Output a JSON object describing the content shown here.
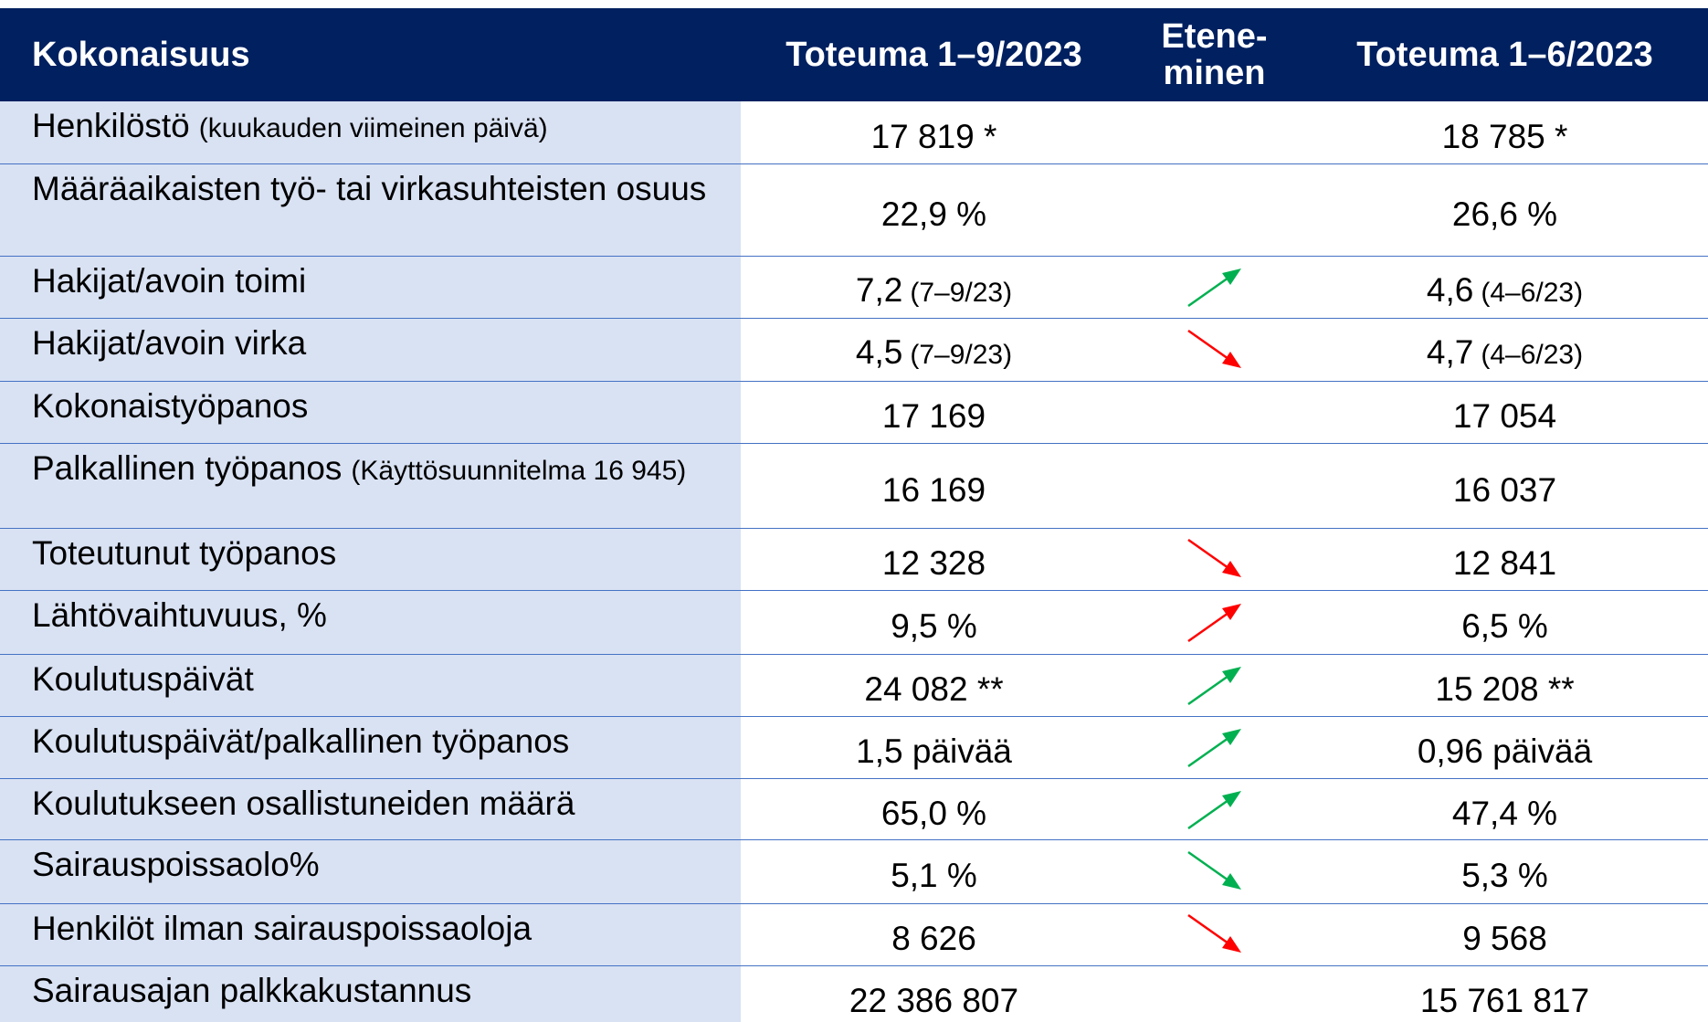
{
  "table": {
    "header": [
      "Kokonaisuus",
      "Toteuma 1–9/2023",
      "Etene-\nminen",
      "Toteuma 1–6/2023"
    ],
    "rows": [
      {
        "label": "Henkilöstö",
        "label_note": "(kuukauden viimeinen päivä)",
        "current": "17 819 *",
        "previous": "18 785 *"
      },
      {
        "label": "Määräaikaisten työ- tai virkasuhteisten osuus",
        "current": "22,9 %",
        "previous": "26,6 %"
      },
      {
        "label": "Hakijat/avoin toimi",
        "current": "7,2",
        "current_note": "(7–9/23)",
        "trend": {
          "direction": "up",
          "color": "#00b050"
        },
        "previous": "4,6",
        "previous_note": "(4–6/23)"
      },
      {
        "label": "Hakijat/avoin virka",
        "current": "4,5",
        "current_note": "(7–9/23)",
        "trend": {
          "direction": "down",
          "color": "#ff0000"
        },
        "previous": "4,7",
        "previous_note": "(4–6/23)"
      },
      {
        "label": "Kokonaistyöpanos",
        "current": "17 169",
        "previous": "17 054"
      },
      {
        "label": "Palkallinen työpanos",
        "label_note": "(Käyttösuunnitelma 16 945)",
        "current": "16 169",
        "previous": "16 037"
      },
      {
        "label": "Toteutunut työpanos",
        "current": "12 328",
        "trend": {
          "direction": "down",
          "color": "#ff0000"
        },
        "previous": "12 841"
      },
      {
        "label": "Lähtövaihtuvuus, %",
        "current": "9,5 %",
        "trend": {
          "direction": "up",
          "color": "#ff0000"
        },
        "previous": "6,5 %"
      },
      {
        "label": "Koulutuspäivät",
        "current": "24 082 **",
        "trend": {
          "direction": "up",
          "color": "#00b050"
        },
        "previous": "15 208 **"
      },
      {
        "label": "Koulutuspäivät/palkallinen työpanos",
        "current": "1,5 päivää",
        "trend": {
          "direction": "up",
          "color": "#00b050"
        },
        "previous": "0,96 päivää"
      },
      {
        "label": "Koulutukseen osallistuneiden määrä",
        "current": "65,0 %",
        "trend": {
          "direction": "up",
          "color": "#00b050"
        },
        "previous": "47,4 %"
      },
      {
        "label": "Sairauspoissaolo%",
        "current": "5,1 %",
        "trend": {
          "direction": "down",
          "color": "#00b050"
        },
        "previous": "5,3 %"
      },
      {
        "label": "Henkilöt ilman sairauspoissaoloja",
        "current": "8 626",
        "trend": {
          "direction": "down",
          "color": "#ff0000"
        },
        "previous": "9 568"
      },
      {
        "label": "Sairausajan palkkakustannus",
        "current": "22 386 807",
        "previous": "15 761 817"
      }
    ]
  }
}
